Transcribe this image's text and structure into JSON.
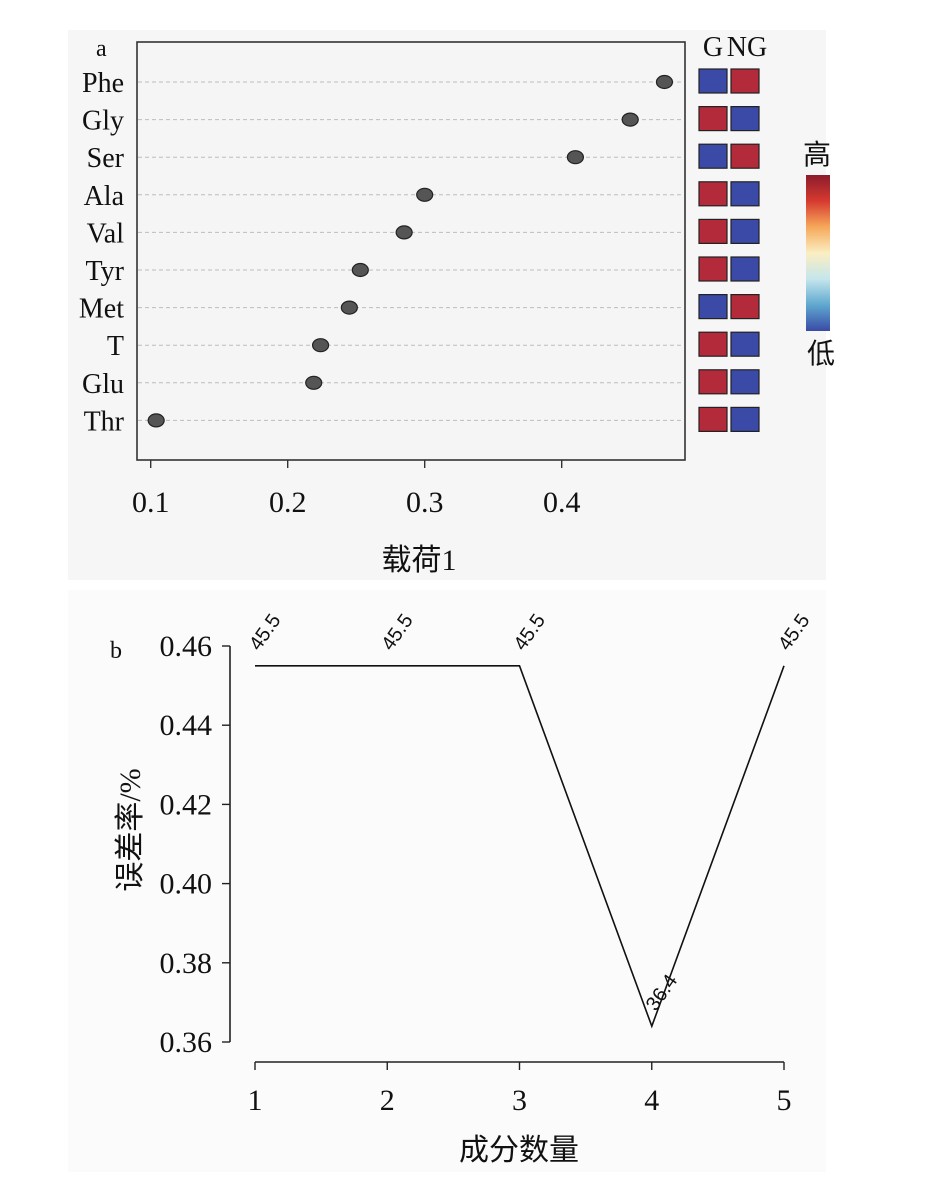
{
  "chart_data": [
    {
      "panel_label": "a",
      "type": "scatter",
      "xlabel": "载荷1",
      "xticks": [
        "0.1",
        "0.2",
        "0.3",
        "0.4"
      ],
      "xlim": [
        0.09,
        0.49
      ],
      "categories": [
        "Phe",
        "Gly",
        "Ser",
        "Ala",
        "Val",
        "Tyr",
        "Met",
        "T",
        "Glu",
        "Thr"
      ],
      "values": [
        0.475,
        0.45,
        0.41,
        0.3,
        0.285,
        0.253,
        0.245,
        0.224,
        0.219,
        0.104
      ],
      "grid": "horizontal dashed",
      "heatmap": {
        "columns": [
          "G",
          "NG"
        ],
        "cells": [
          [
            "low",
            "high"
          ],
          [
            "high",
            "low"
          ],
          [
            "low",
            "high"
          ],
          [
            "high",
            "low"
          ],
          [
            "high",
            "low"
          ],
          [
            "high",
            "low"
          ],
          [
            "low",
            "high"
          ],
          [
            "high",
            "low"
          ],
          [
            "high",
            "low"
          ],
          [
            "high",
            "low"
          ]
        ],
        "colors": {
          "high": "#b32a3a",
          "low": "#3a4aa6"
        }
      },
      "color_scale": {
        "high_label": "高",
        "low_label": "低",
        "stops": [
          "#8c1c2c",
          "#d63a2f",
          "#f6a85a",
          "#fbeec2",
          "#c5e6ec",
          "#5fa8cf",
          "#3a4aa6"
        ]
      },
      "point_color": "#555555"
    },
    {
      "panel_label": "b",
      "type": "line",
      "xlabel": "成分数量",
      "ylabel": "误差率/%",
      "x": [
        1,
        2,
        3,
        4,
        5
      ],
      "y": [
        0.455,
        0.455,
        0.455,
        0.364,
        0.455
      ],
      "data_labels": [
        "45.5",
        "45.5",
        "45.5",
        "36.4",
        "45.5"
      ],
      "xticks": [
        "1",
        "2",
        "3",
        "4",
        "5"
      ],
      "yticks": [
        "0.36",
        "0.38",
        "0.40",
        "0.42",
        "0.44",
        "0.46"
      ],
      "ylim": [
        0.36,
        0.46
      ],
      "xlim": [
        1,
        5
      ]
    }
  ]
}
